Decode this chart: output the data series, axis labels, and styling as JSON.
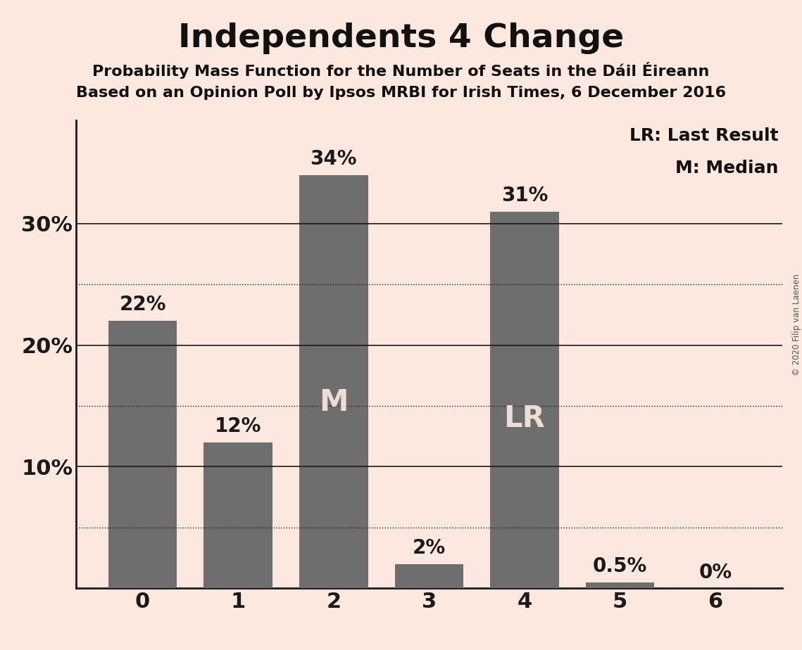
{
  "title": "Independents 4 Change",
  "subtitle1": "Probability Mass Function for the Number of Seats in the Dáil Éireann",
  "subtitle2": "Based on an Opinion Poll by Ipsos MRBI for Irish Times, 6 December 2016",
  "categories": [
    0,
    1,
    2,
    3,
    4,
    5,
    6
  ],
  "values": [
    0.22,
    0.12,
    0.34,
    0.02,
    0.31,
    0.005,
    0.0
  ],
  "bar_color": "#6e6e6e",
  "background_color": "#fce8df",
  "bar_labels": [
    "22%",
    "12%",
    "34%",
    "2%",
    "31%",
    "0.5%",
    "0%"
  ],
  "bar_inner_labels": {
    "2": "M",
    "4": "LR"
  },
  "bar_inner_label_color": "#edddd5",
  "legend_text": [
    "LR: Last Result",
    "M: Median"
  ],
  "copyright_text": "© 2020 Filip van Laenen",
  "ylim": [
    0,
    0.385
  ],
  "yticks": [
    0.0,
    0.1,
    0.2,
    0.3
  ],
  "ytick_labels": [
    "",
    "10%",
    "20%",
    "30%"
  ],
  "dotted_lines": [
    0.05,
    0.15,
    0.25
  ],
  "solid_lines": [
    0.1,
    0.2,
    0.3
  ],
  "title_fontsize": 34,
  "subtitle_fontsize": 16,
  "axis_label_fontsize": 22,
  "bar_label_fontsize": 20,
  "inner_label_fontsize": 30,
  "legend_fontsize": 18,
  "bar_width": 0.72
}
